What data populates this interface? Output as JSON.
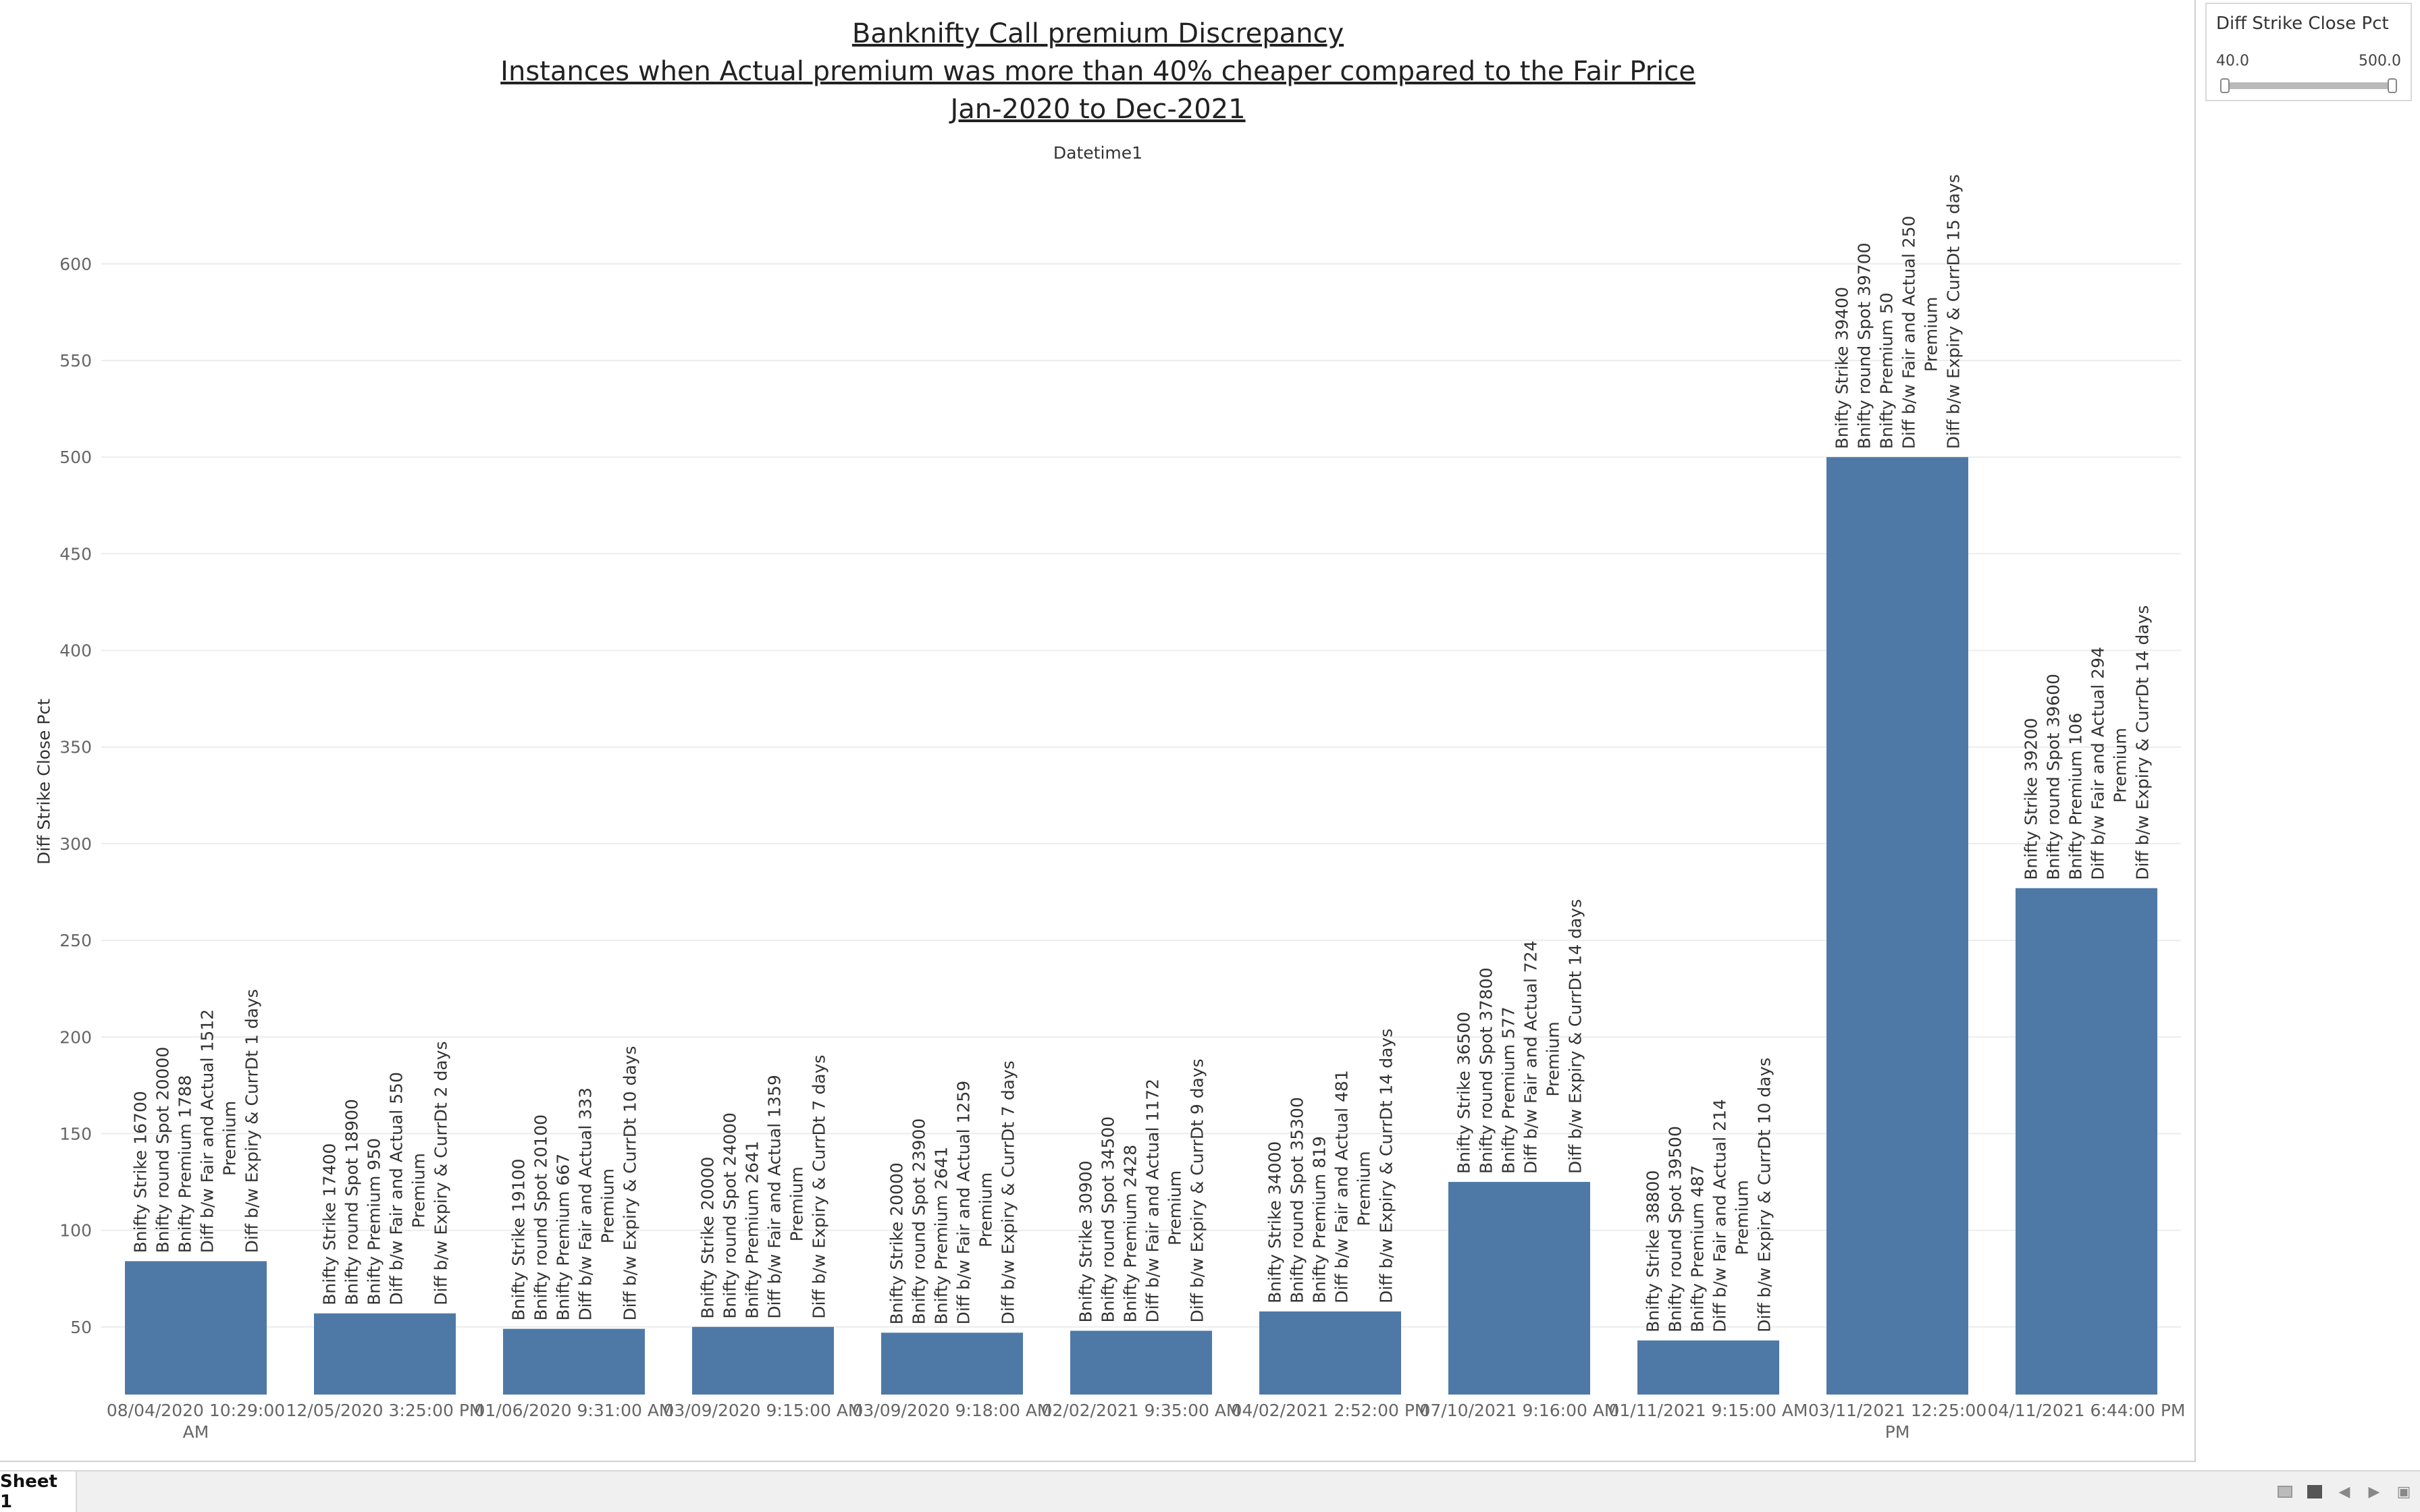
{
  "title": {
    "line1": "Banknifty Call premium Discrepancy",
    "line2": "Instances when Actual premium was more than 40% cheaper compared to the Fair Price",
    "line3": "Jan-2020 to Dec-2021"
  },
  "column_header": "Datetime1",
  "filter": {
    "title": "Diff Strike Close Pct",
    "min_label": "40.0",
    "max_label": "500.0"
  },
  "bottom_bar": {
    "sheet_tab": "Sheet 1"
  },
  "colors": {
    "bar": "#4e79a7",
    "gridline": "#ececec",
    "axis_text": "#666666",
    "label_text": "#333333"
  },
  "chart_data": {
    "type": "bar",
    "ylabel": "Diff Strike Close Pct",
    "xlabel": "",
    "ylim": [
      15,
      645
    ],
    "yticks": [
      50,
      100,
      150,
      200,
      250,
      300,
      350,
      400,
      450,
      500,
      550,
      600
    ],
    "categories": [
      [
        "08/04/2020 10:29:00",
        "AM"
      ],
      [
        "12/05/2020 3:25:00 PM"
      ],
      [
        "01/06/2020 9:31:00 AM"
      ],
      [
        "03/09/2020 9:15:00 AM"
      ],
      [
        "03/09/2020 9:18:00 AM"
      ],
      [
        "02/02/2021 9:35:00 AM"
      ],
      [
        "04/02/2021 2:52:00 PM"
      ],
      [
        "07/10/2021 9:16:00 AM"
      ],
      [
        "01/11/2021 9:15:00 AM"
      ],
      [
        "03/11/2021 12:25:00",
        "PM"
      ],
      [
        "04/11/2021 6:44:00 PM"
      ]
    ],
    "values": [
      84,
      57,
      49,
      50,
      47,
      48,
      58,
      125,
      43,
      500,
      277
    ],
    "labels": [
      [
        "Bnifty Strike 16700",
        "Bnifty round Spot 20000",
        "Bnifty Premium 1788",
        "Diff b/w Fair and Actual 1512",
        "Premium",
        "Diff b/w Expiry & CurrDt 1 days"
      ],
      [
        "Bnifty Strike 17400",
        "Bnifty round Spot 18900",
        "Bnifty Premium 950",
        "Diff b/w Fair and Actual 550",
        "Premium",
        "Diff b/w Expiry & CurrDt 2 days"
      ],
      [
        "Bnifty Strike 19100",
        "Bnifty round Spot 20100",
        "Bnifty Premium 667",
        "Diff b/w Fair and Actual 333",
        "Premium",
        "Diff b/w Expiry & CurrDt 10 days"
      ],
      [
        "Bnifty Strike 20000",
        "Bnifty round Spot 24000",
        "Bnifty Premium 2641",
        "Diff b/w Fair and Actual 1359",
        "Premium",
        "Diff b/w Expiry & CurrDt 7 days"
      ],
      [
        "Bnifty Strike 20000",
        "Bnifty round Spot 23900",
        "Bnifty Premium 2641",
        "Diff b/w Fair and Actual 1259",
        "Premium",
        "Diff b/w Expiry & CurrDt 7 days"
      ],
      [
        "Bnifty Strike 30900",
        "Bnifty round Spot 34500",
        "Bnifty Premium 2428",
        "Diff b/w Fair and Actual 1172",
        "Premium",
        "Diff b/w Expiry & CurrDt 9 days"
      ],
      [
        "Bnifty Strike 34000",
        "Bnifty round Spot 35300",
        "Bnifty Premium 819",
        "Diff b/w Fair and Actual 481",
        "Premium",
        "Diff b/w Expiry & CurrDt 14 days"
      ],
      [
        "Bnifty Strike 36500",
        "Bnifty round Spot 37800",
        "Bnifty Premium 577",
        "Diff b/w Fair and Actual 724",
        "Premium",
        "Diff b/w Expiry & CurrDt 14 days"
      ],
      [
        "Bnifty Strike 38800",
        "Bnifty round Spot 39500",
        "Bnifty Premium 487",
        "Diff b/w Fair and Actual 214",
        "Premium",
        "Diff b/w Expiry & CurrDt 10 days"
      ],
      [
        "Bnifty Strike 39400",
        "Bnifty round Spot 39700",
        "Bnifty Premium 50",
        "Diff b/w Fair and Actual 250",
        "Premium",
        "Diff b/w Expiry & CurrDt 15 days"
      ],
      [
        "Bnifty Strike 39200",
        "Bnifty round Spot 39600",
        "Bnifty Premium 106",
        "Diff b/w Fair and Actual 294",
        "Premium",
        "Diff b/w Expiry & CurrDt 14 days"
      ]
    ],
    "grid": true,
    "legend": "none"
  }
}
